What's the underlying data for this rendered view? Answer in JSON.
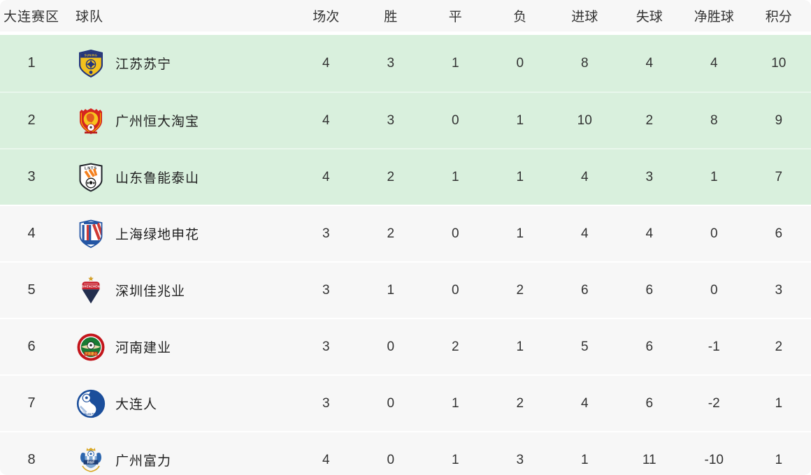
{
  "table": {
    "title_region": "大连赛区",
    "columns": [
      "大连赛区",
      "球队",
      "场次",
      "胜",
      "平",
      "负",
      "进球",
      "失球",
      "净胜球",
      "积分"
    ],
    "rows": [
      {
        "rank": "1",
        "team": "江苏苏宁",
        "logo": "jiangsu-suning-logo",
        "highlight": true,
        "stats": [
          "4",
          "3",
          "1",
          "0",
          "8",
          "4",
          "4",
          "10"
        ]
      },
      {
        "rank": "2",
        "team": "广州恒大淘宝",
        "logo": "guangzhou-evergrande-logo",
        "highlight": true,
        "stats": [
          "4",
          "3",
          "0",
          "1",
          "10",
          "2",
          "8",
          "9"
        ]
      },
      {
        "rank": "3",
        "team": "山东鲁能泰山",
        "logo": "shandong-luneng-logo",
        "highlight": true,
        "stats": [
          "4",
          "2",
          "1",
          "1",
          "4",
          "3",
          "1",
          "7"
        ]
      },
      {
        "rank": "4",
        "team": "上海绿地申花",
        "logo": "shanghai-shenhua-logo",
        "highlight": false,
        "stats": [
          "3",
          "2",
          "0",
          "1",
          "4",
          "4",
          "0",
          "6"
        ]
      },
      {
        "rank": "5",
        "team": "深圳佳兆业",
        "logo": "shenzhen-kaisa-logo",
        "highlight": false,
        "stats": [
          "3",
          "1",
          "0",
          "2",
          "6",
          "6",
          "0",
          "3"
        ]
      },
      {
        "rank": "6",
        "team": "河南建业",
        "logo": "henan-jianye-logo",
        "highlight": false,
        "stats": [
          "3",
          "0",
          "2",
          "1",
          "5",
          "6",
          "-1",
          "2"
        ]
      },
      {
        "rank": "7",
        "team": "大连人",
        "logo": "dalian-pro-logo",
        "highlight": false,
        "stats": [
          "3",
          "0",
          "1",
          "2",
          "4",
          "6",
          "-2",
          "1"
        ]
      },
      {
        "rank": "8",
        "team": "广州富力",
        "logo": "guangzhou-rf-logo",
        "highlight": false,
        "stats": [
          "4",
          "0",
          "1",
          "3",
          "1",
          "11",
          "-10",
          "1"
        ]
      }
    ]
  },
  "colors": {
    "highlight_row_bg": "#d9f0dd",
    "row_bg": "#f7f7f7",
    "header_bg": "#f7f7f7",
    "text": "#333333"
  }
}
